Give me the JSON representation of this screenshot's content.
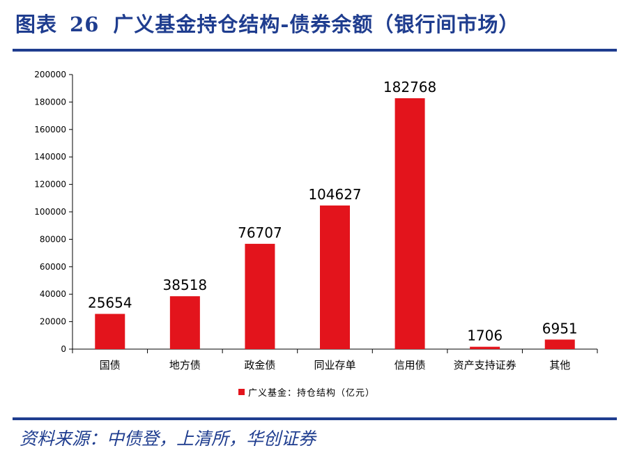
{
  "header": {
    "figure_label": "图表",
    "figure_number": "26",
    "title": "广义基金持仓结构-债券余额（银行间市场）"
  },
  "footer": {
    "source": "资料来源：中债登，上清所，华创证券"
  },
  "colors": {
    "accent": "#1f3d8f",
    "bar": "#e3141c"
  },
  "chart_data": {
    "type": "bar",
    "categories": [
      "国债",
      "地方债",
      "政金债",
      "同业存单",
      "信用债",
      "资产支持证券",
      "其他"
    ],
    "series": [
      {
        "name": "广义基金：持仓结构（亿元）",
        "values": [
          25654,
          38518,
          76707,
          104627,
          182768,
          1706,
          6951
        ]
      }
    ],
    "data_labels": [
      "25654",
      "38518",
      "76707",
      "104627",
      "182768",
      "1706",
      "6951"
    ],
    "yticks": [
      "0",
      "20000",
      "40000",
      "60000",
      "80000",
      "100000",
      "120000",
      "140000",
      "160000",
      "180000",
      "200000"
    ],
    "ylim": [
      0,
      200000
    ],
    "grid": false,
    "legend_position": "bottom"
  }
}
